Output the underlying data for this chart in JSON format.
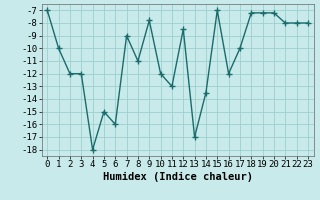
{
  "x": [
    0,
    1,
    2,
    3,
    4,
    5,
    6,
    7,
    8,
    9,
    10,
    11,
    12,
    13,
    14,
    15,
    16,
    17,
    18,
    19,
    20,
    21,
    22,
    23
  ],
  "y": [
    -7,
    -10,
    -12,
    -12,
    -18,
    -15,
    -16,
    -9,
    -11,
    -7.8,
    -12,
    -13,
    -8.5,
    -17,
    -13.5,
    -7,
    -12,
    -10,
    -7.2,
    -7.2,
    -7.2,
    -8,
    -8,
    -8
  ],
  "xlabel": "Humidex (Indice chaleur)",
  "ylim": [
    -18.5,
    -6.5
  ],
  "xlim": [
    -0.5,
    23.5
  ],
  "yticks": [
    -7,
    -8,
    -9,
    -10,
    -11,
    -12,
    -13,
    -14,
    -15,
    -16,
    -17,
    -18
  ],
  "xticks": [
    0,
    1,
    2,
    3,
    4,
    5,
    6,
    7,
    8,
    9,
    10,
    11,
    12,
    13,
    14,
    15,
    16,
    17,
    18,
    19,
    20,
    21,
    22,
    23
  ],
  "line_color": "#1a6b6b",
  "marker": "+",
  "marker_size": 4,
  "bg_color": "#c8eaea",
  "grid_color": "#9ccfcf",
  "tick_label_fontsize": 6.5,
  "xlabel_fontsize": 7.5,
  "line_width": 1.0,
  "fig_width": 3.2,
  "fig_height": 2.0,
  "dpi": 100
}
